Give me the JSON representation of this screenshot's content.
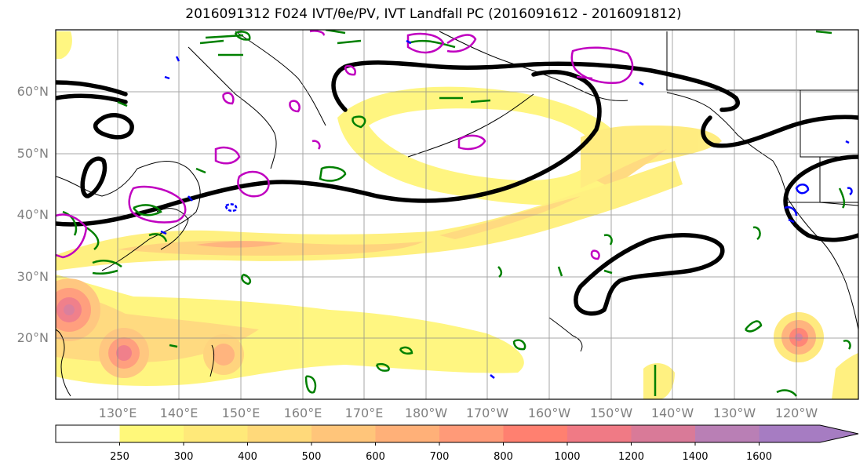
{
  "title": "2016091312 F024 IVT/θe/PV, IVT Landfall PC (2016091612 - 2016091812)",
  "map": {
    "lat_labels": [
      "60°N",
      "50°N",
      "40°N",
      "30°N",
      "20°N"
    ],
    "lon_labels": [
      "130°E",
      "140°E",
      "150°E",
      "160°E",
      "170°E",
      "180°W",
      "170°W",
      "160°W",
      "150°W",
      "140°W",
      "130°W",
      "120°W"
    ],
    "grid": true,
    "ivt_shading_colors": [
      "#ffffff",
      "#fff87a",
      "#ffe979",
      "#ffd97a",
      "#ffc57a",
      "#ffb078",
      "#ff9a78",
      "#ff8070",
      "#f07a85",
      "#d97a98",
      "#b97fb5",
      "#a67cc2"
    ],
    "contour_colors": {
      "pc": "#000000",
      "theta_e": "#008000",
      "pv": "#c000c0",
      "neg": "#0000ff"
    }
  },
  "colorbar": {
    "ticks": [
      "250",
      "300",
      "400",
      "500",
      "600",
      "700",
      "800",
      "1000",
      "1200",
      "1400",
      "1600"
    ],
    "colors": [
      "#ffffff",
      "#fff87a",
      "#ffe979",
      "#ffd97a",
      "#ffc57a",
      "#ffb078",
      "#ff9a78",
      "#ff8070",
      "#f07a85",
      "#d97a98",
      "#b97fb5",
      "#a67cc2"
    ],
    "extend": "max"
  }
}
